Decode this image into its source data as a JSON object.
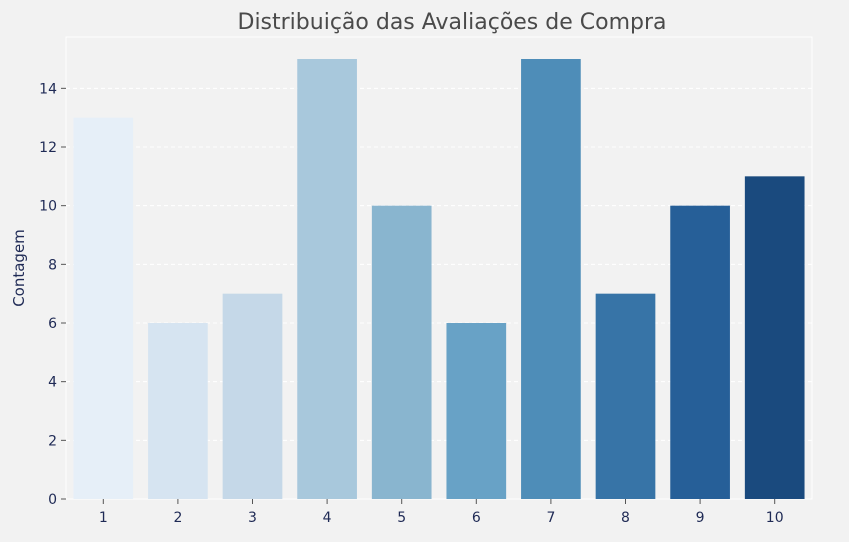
{
  "chart_data": {
    "type": "bar",
    "title": "Distribuição das Avaliações de Compra",
    "xlabel": "",
    "ylabel": "Contagem",
    "categories": [
      "1",
      "2",
      "3",
      "4",
      "5",
      "6",
      "7",
      "8",
      "9",
      "10"
    ],
    "values": [
      13,
      6,
      7,
      15,
      10,
      6,
      15,
      7,
      10,
      11
    ],
    "ylim": [
      0,
      15.75
    ],
    "yticks": [
      0,
      2,
      4,
      6,
      8,
      10,
      12,
      14
    ],
    "grid": true,
    "legend": "none",
    "colors": [
      "#e6eff8",
      "#d6e4f1",
      "#c5d8e8",
      "#a8c8dc",
      "#89b5cf",
      "#68a2c6",
      "#4e8db8",
      "#3774a7",
      "#265f98",
      "#1a4a7e"
    ]
  }
}
